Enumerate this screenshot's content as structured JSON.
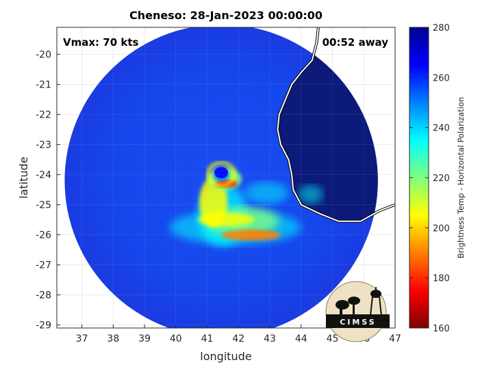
{
  "chart_data": {
    "type": "heatmap",
    "title": "Cheneso: 28-Jan-2023 00:00:00",
    "xlabel": "longitude",
    "ylabel": "latitude",
    "xlim": [
      36.2,
      47
    ],
    "ylim": [
      -29.1,
      -19.1
    ],
    "xticks": [
      "37",
      "38",
      "39",
      "40",
      "41",
      "42",
      "43",
      "44",
      "45",
      "46",
      "47"
    ],
    "yticks": [
      "-20",
      "-21",
      "-22",
      "-23",
      "-24",
      "-25",
      "-26",
      "-27",
      "-28",
      "-29"
    ],
    "grid": true,
    "annotations": {
      "vmax": "Vmax: 70 kts",
      "away": "00:52 away"
    },
    "storm_center": {
      "lon": 41.5,
      "lat": -24.4
    },
    "swath": {
      "center_lon": 41.45,
      "center_lat": -24.2,
      "radius_deg": 5.0
    },
    "colorbar": {
      "label": "Brightness Temp - Horizontal Polarization",
      "range": [
        160,
        280
      ],
      "ticks": [
        "280",
        "260",
        "240",
        "220",
        "200",
        "180",
        "160"
      ],
      "colors": [
        "#7f0000",
        "#ff0000",
        "#ff7f00",
        "#ffff00",
        "#7fff7f",
        "#00ffff",
        "#0080ff",
        "#0000ff",
        "#00008f"
      ]
    },
    "coastline": [
      [
        44.55,
        -19.1
      ],
      [
        44.5,
        -19.6
      ],
      [
        44.35,
        -20.2
      ],
      [
        44.0,
        -20.6
      ],
      [
        43.7,
        -21.0
      ],
      [
        43.5,
        -21.5
      ],
      [
        43.3,
        -22.0
      ],
      [
        43.25,
        -22.5
      ],
      [
        43.35,
        -23.0
      ],
      [
        43.6,
        -23.5
      ],
      [
        43.7,
        -24.0
      ],
      [
        43.75,
        -24.5
      ],
      [
        44.0,
        -25.0
      ],
      [
        44.6,
        -25.3
      ],
      [
        45.2,
        -25.55
      ],
      [
        45.9,
        -25.55
      ],
      [
        46.5,
        -25.2
      ],
      [
        47.0,
        -25.0
      ]
    ],
    "logo_text": "CIMSS"
  }
}
